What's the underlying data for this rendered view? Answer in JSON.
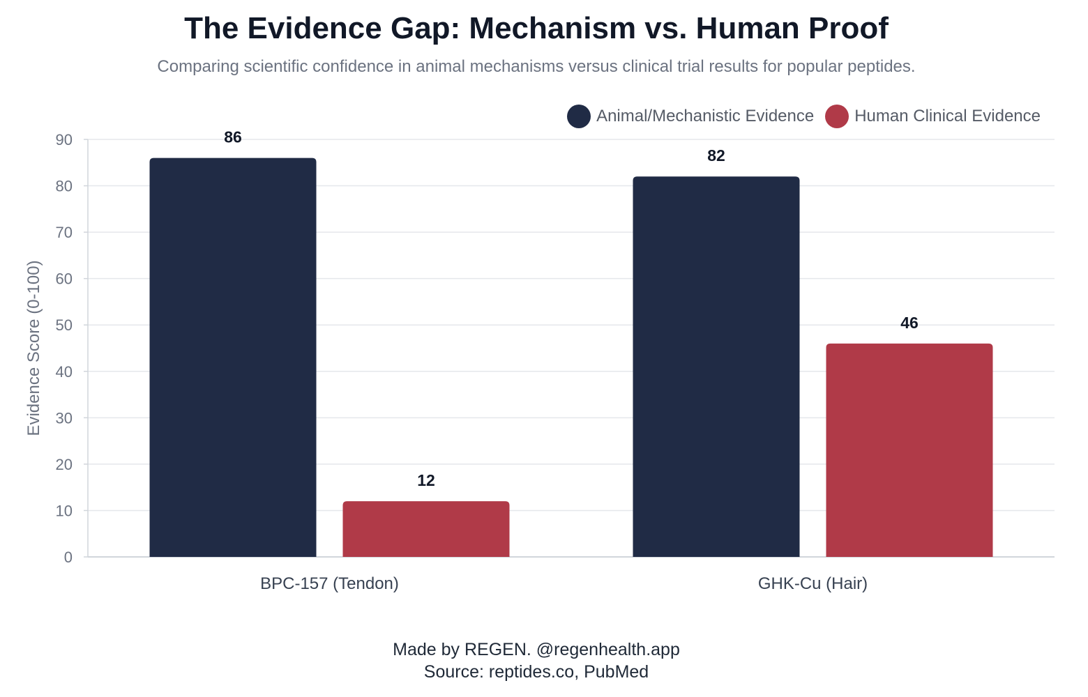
{
  "title": "The Evidence Gap: Mechanism vs. Human Proof",
  "subtitle": "Comparing scientific confidence in animal mechanisms versus clinical trial results for popular peptides.",
  "footer": {
    "line1": "Made by REGEN. @regenhealth.app",
    "line2": "Source: reptides.co, PubMed"
  },
  "colors": {
    "animal": "#202b45",
    "human": "#b03a48"
  },
  "chart_data": {
    "type": "bar",
    "categories": [
      "BPC-157 (Tendon)",
      "GHK-Cu (Hair)"
    ],
    "series": [
      {
        "name": "Animal/Mechanistic Evidence",
        "values": [
          86,
          82
        ],
        "color": "#202b45"
      },
      {
        "name": "Human Clinical Evidence",
        "values": [
          12,
          46
        ],
        "color": "#b03a48"
      }
    ],
    "ylabel": "Evidence Score (0-100)",
    "xlabel": "",
    "ylim": [
      0,
      90
    ],
    "yticks": [
      0,
      10,
      20,
      30,
      40,
      50,
      60,
      70,
      80,
      90
    ],
    "grid": true,
    "legend": "top-right"
  }
}
